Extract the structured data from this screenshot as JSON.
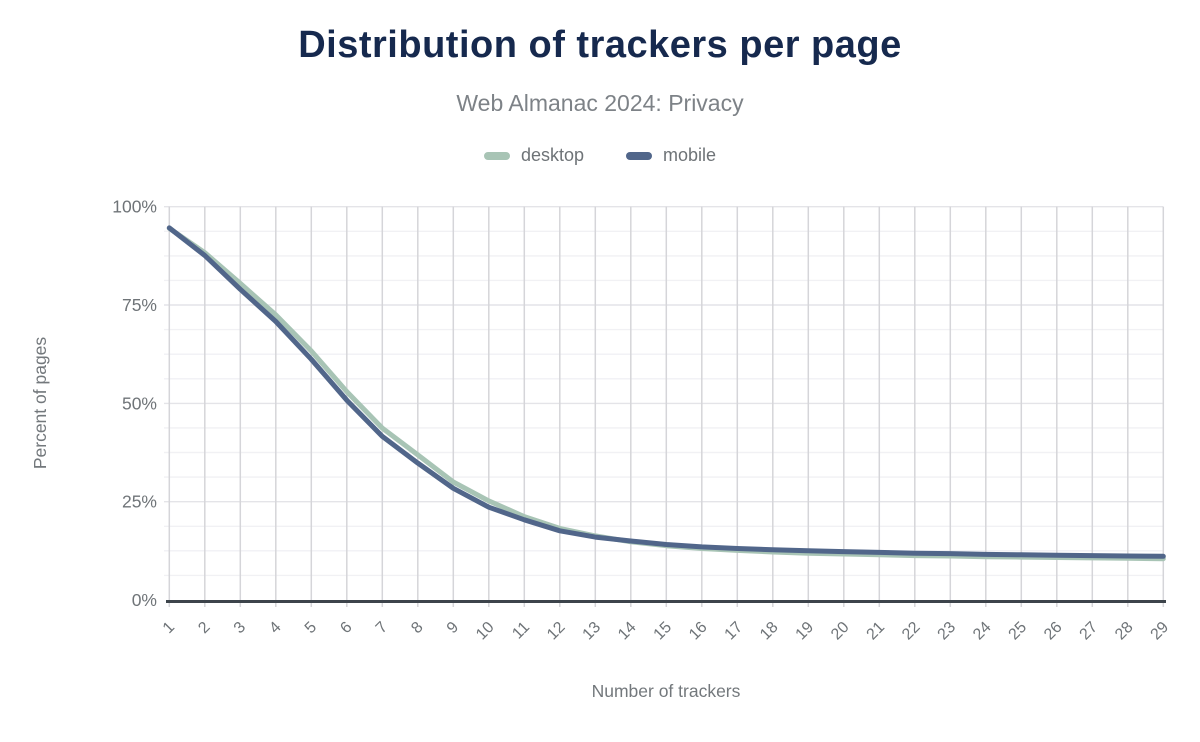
{
  "header": {
    "title": "Distribution of trackers per page",
    "subtitle": "Web Almanac 2024: Privacy"
  },
  "legend": [
    {
      "label": "desktop",
      "color": "#a8c4b5"
    },
    {
      "label": "mobile",
      "color": "#51668a"
    }
  ],
  "colors": {
    "title_text": "#16294e",
    "subtitle_text": "#7d8287",
    "tick_text": "#6f7478",
    "axis_title_text": "#73787c",
    "grid_vertical": "#d5d5d9",
    "grid_major": "#e4e4e8",
    "grid_minor": "#f1f1f4",
    "axis_line": "#3d444b"
  },
  "chart_data": {
    "type": "line",
    "title": "Distribution of trackers per page",
    "subtitle": "Web Almanac 2024: Privacy",
    "xlabel": "Number of trackers",
    "ylabel": "Percent of pages",
    "x": [
      1,
      2,
      3,
      4,
      5,
      6,
      7,
      8,
      9,
      10,
      11,
      12,
      13,
      14,
      15,
      16,
      17,
      18,
      19,
      20,
      21,
      22,
      23,
      24,
      25,
      26,
      27,
      28,
      29
    ],
    "series": [
      {
        "name": "desktop",
        "color": "#a8c4b5",
        "values": [
          94.5,
          88.3,
          80.5,
          72.5,
          63.3,
          53.0,
          43.7,
          36.9,
          30.0,
          25.2,
          21.2,
          18.2,
          16.3,
          14.8,
          13.8,
          13.1,
          12.6,
          12.2,
          11.9,
          11.7,
          11.5,
          11.3,
          11.2,
          11.0,
          10.9,
          10.8,
          10.7,
          10.6,
          10.5
        ]
      },
      {
        "name": "mobile",
        "color": "#51668a",
        "values": [
          94.6,
          87.6,
          79.0,
          70.8,
          61.2,
          50.8,
          41.6,
          34.8,
          28.4,
          23.6,
          20.4,
          17.6,
          16.0,
          15.0,
          14.1,
          13.5,
          13.1,
          12.8,
          12.5,
          12.3,
          12.1,
          11.9,
          11.8,
          11.6,
          11.5,
          11.4,
          11.3,
          11.2,
          11.1
        ]
      }
    ],
    "y_tick_values": [
      0,
      25,
      50,
      75,
      100
    ],
    "y_tick_labels": [
      "0%",
      "25%",
      "50%",
      "75%",
      "100%"
    ],
    "ylim": [
      0,
      100
    ],
    "grid": "major horizontal every 25%, minor every 6.25%, vertical per tracker",
    "legend_position": "top-center"
  }
}
